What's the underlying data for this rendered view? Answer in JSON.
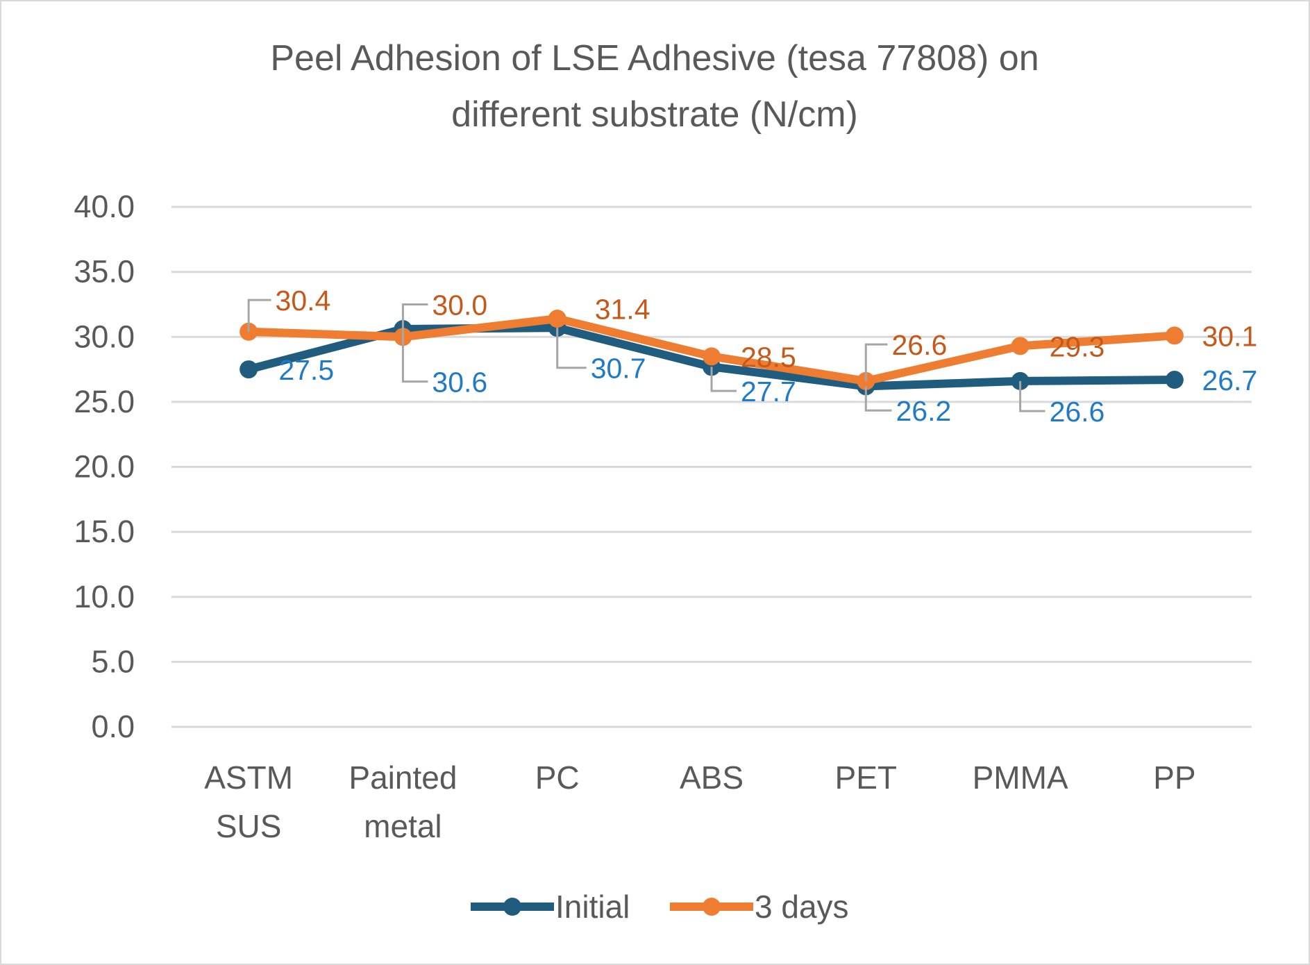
{
  "chart_data": {
    "type": "line",
    "title": "Peel Adhesion of LSE Adhesive (tesa 77808) on different substrate (N/cm)",
    "title_lines": [
      "Peel Adhesion of LSE Adhesive (tesa 77808) on",
      "different substrate (N/cm)"
    ],
    "categories": [
      [
        "ASTM",
        "SUS"
      ],
      [
        "Painted",
        "metal"
      ],
      [
        "PC"
      ],
      [
        "ABS"
      ],
      [
        "PET"
      ],
      [
        "PMMA"
      ],
      [
        "PP"
      ]
    ],
    "ylim": [
      0,
      40
    ],
    "yticks": [
      "0.0",
      "5.0",
      "10.0",
      "15.0",
      "20.0",
      "25.0",
      "30.0",
      "35.0",
      "40.0"
    ],
    "grid": true,
    "legend_position": "bottom",
    "series": [
      {
        "name": "Initial",
        "color": "#1f5c7d",
        "label_color": "#1f7ac9",
        "values": [
          27.5,
          30.6,
          30.7,
          27.7,
          26.2,
          26.6,
          26.7
        ],
        "labels": [
          "27.5",
          "30.6",
          "30.7",
          "27.7",
          "26.2",
          "26.6",
          "26.7"
        ]
      },
      {
        "name": "3 days",
        "color": "#ee7d31",
        "label_color": "#c5591a",
        "values": [
          30.4,
          30.0,
          31.4,
          28.5,
          26.6,
          29.3,
          30.1
        ],
        "labels": [
          "30.4",
          "30.0",
          "31.4",
          "28.5",
          "26.6",
          "29.3",
          "30.1"
        ]
      }
    ]
  }
}
